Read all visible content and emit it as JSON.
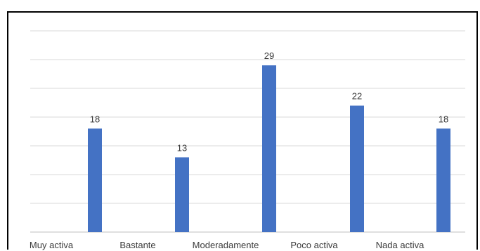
{
  "chart_data": {
    "type": "bar",
    "categories": [
      "Muy activa",
      "Bastante",
      "Moderadamente",
      "Poco activa",
      "Nada activa"
    ],
    "values": [
      18,
      13,
      29,
      22,
      18
    ],
    "data_labels": [
      "18",
      "13",
      "29",
      "22",
      "18"
    ],
    "title": "",
    "xlabel": "",
    "ylabel": "",
    "ylim": [
      0,
      35
    ],
    "grid": true,
    "bar_color": "#4472C4",
    "gridline_color": "#d9d9d9"
  }
}
